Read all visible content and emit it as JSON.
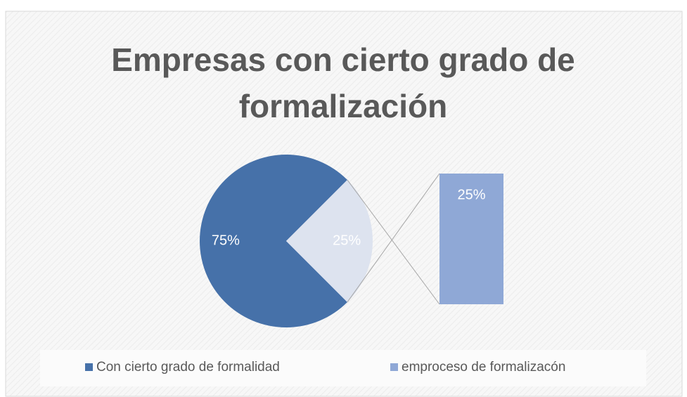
{
  "chart_data": {
    "type": "pie",
    "title": "Empresas con cierto grado de formalización",
    "categories": [
      "Con cierto grado de formalidad",
      "emproceso de formalizacón"
    ],
    "values": [
      75,
      25
    ],
    "value_labels": [
      "75%",
      "25%"
    ],
    "colors": [
      "#4671a9",
      "#dde3ef"
    ],
    "bar_color": "#8fa8d6",
    "legend": "bottom"
  }
}
